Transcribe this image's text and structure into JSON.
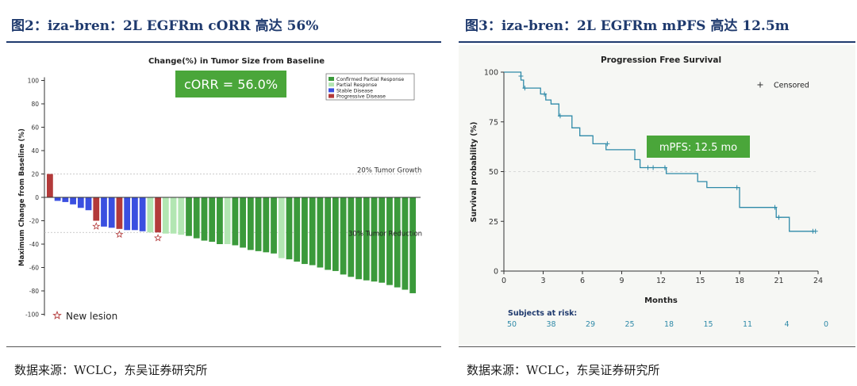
{
  "left": {
    "figure_title": "图2：iza-bren：2L EGFRm cORR 高达 56%",
    "source": "数据来源：WCLC，东吴证券研究所"
  },
  "right": {
    "figure_title": "图3：iza-bren：2L EGFRm mPFS 高达 12.5m",
    "source": "数据来源：WCLC，东吴证券研究所"
  },
  "chart_data": [
    {
      "type": "bar",
      "title": "Change(%) in Tumor Size from Baseline",
      "xlabel": "",
      "ylabel": "Maximum Change from Baseline (%)",
      "ylim": [
        -100,
        100
      ],
      "yticks": [
        100,
        80,
        60,
        40,
        20,
        0,
        -20,
        -40,
        -60,
        -80,
        -100
      ],
      "grid": false,
      "legend_position": "top-right",
      "legend": [
        {
          "label": "Confirmed Partial Response",
          "color": "#3b9a3b"
        },
        {
          "label": "Partial Response",
          "color": "#b2e6b2"
        },
        {
          "label": "Stable Disease",
          "color": "#3a4fe0"
        },
        {
          "label": "Progressive Disease",
          "color": "#b33a3a"
        }
      ],
      "annotations": {
        "corr_box": "cORR = 56.0%",
        "growth_line_label": "20% Tumor Growth",
        "growth_line_value": 20,
        "reduction_line_label": "30% Tumor Reduction",
        "reduction_line_value": -30,
        "new_lesion_label": "New lesion"
      },
      "bars": [
        {
          "value": 20,
          "category": "Progressive Disease",
          "new_lesion": false
        },
        {
          "value": -3,
          "category": "Stable Disease",
          "new_lesion": false
        },
        {
          "value": -4,
          "category": "Stable Disease",
          "new_lesion": false
        },
        {
          "value": -6,
          "category": "Stable Disease",
          "new_lesion": false
        },
        {
          "value": -9,
          "category": "Stable Disease",
          "new_lesion": false
        },
        {
          "value": -11,
          "category": "Stable Disease",
          "new_lesion": false
        },
        {
          "value": -20,
          "category": "Progressive Disease",
          "new_lesion": true
        },
        {
          "value": -25,
          "category": "Stable Disease",
          "new_lesion": false
        },
        {
          "value": -26,
          "category": "Stable Disease",
          "new_lesion": false
        },
        {
          "value": -27,
          "category": "Progressive Disease",
          "new_lesion": true
        },
        {
          "value": -28,
          "category": "Stable Disease",
          "new_lesion": false
        },
        {
          "value": -28,
          "category": "Stable Disease",
          "new_lesion": false
        },
        {
          "value": -29,
          "category": "Stable Disease",
          "new_lesion": false
        },
        {
          "value": -30,
          "category": "Partial Response",
          "new_lesion": false
        },
        {
          "value": -30,
          "category": "Progressive Disease",
          "new_lesion": true
        },
        {
          "value": -31,
          "category": "Partial Response",
          "new_lesion": false
        },
        {
          "value": -31,
          "category": "Partial Response",
          "new_lesion": false
        },
        {
          "value": -32,
          "category": "Partial Response",
          "new_lesion": false
        },
        {
          "value": -33,
          "category": "Confirmed Partial Response",
          "new_lesion": false
        },
        {
          "value": -35,
          "category": "Confirmed Partial Response",
          "new_lesion": false
        },
        {
          "value": -37,
          "category": "Confirmed Partial Response",
          "new_lesion": false
        },
        {
          "value": -38,
          "category": "Confirmed Partial Response",
          "new_lesion": false
        },
        {
          "value": -40,
          "category": "Confirmed Partial Response",
          "new_lesion": false
        },
        {
          "value": -40,
          "category": "Partial Response",
          "new_lesion": false
        },
        {
          "value": -41,
          "category": "Confirmed Partial Response",
          "new_lesion": false
        },
        {
          "value": -43,
          "category": "Confirmed Partial Response",
          "new_lesion": false
        },
        {
          "value": -45,
          "category": "Confirmed Partial Response",
          "new_lesion": false
        },
        {
          "value": -46,
          "category": "Confirmed Partial Response",
          "new_lesion": false
        },
        {
          "value": -47,
          "category": "Confirmed Partial Response",
          "new_lesion": false
        },
        {
          "value": -48,
          "category": "Confirmed Partial Response",
          "new_lesion": false
        },
        {
          "value": -52,
          "category": "Partial Response",
          "new_lesion": false
        },
        {
          "value": -53,
          "category": "Confirmed Partial Response",
          "new_lesion": false
        },
        {
          "value": -55,
          "category": "Confirmed Partial Response",
          "new_lesion": false
        },
        {
          "value": -57,
          "category": "Confirmed Partial Response",
          "new_lesion": false
        },
        {
          "value": -58,
          "category": "Confirmed Partial Response",
          "new_lesion": false
        },
        {
          "value": -60,
          "category": "Confirmed Partial Response",
          "new_lesion": false
        },
        {
          "value": -62,
          "category": "Confirmed Partial Response",
          "new_lesion": false
        },
        {
          "value": -63,
          "category": "Confirmed Partial Response",
          "new_lesion": false
        },
        {
          "value": -66,
          "category": "Confirmed Partial Response",
          "new_lesion": false
        },
        {
          "value": -68,
          "category": "Confirmed Partial Response",
          "new_lesion": false
        },
        {
          "value": -70,
          "category": "Confirmed Partial Response",
          "new_lesion": false
        },
        {
          "value": -71,
          "category": "Confirmed Partial Response",
          "new_lesion": false
        },
        {
          "value": -72,
          "category": "Confirmed Partial Response",
          "new_lesion": false
        },
        {
          "value": -73,
          "category": "Confirmed Partial Response",
          "new_lesion": false
        },
        {
          "value": -75,
          "category": "Confirmed Partial Response",
          "new_lesion": false
        },
        {
          "value": -77,
          "category": "Confirmed Partial Response",
          "new_lesion": false
        },
        {
          "value": -79,
          "category": "Confirmed Partial Response",
          "new_lesion": false
        },
        {
          "value": -82,
          "category": "Confirmed Partial Response",
          "new_lesion": false
        }
      ]
    },
    {
      "type": "line",
      "title": "Progression Free Survival",
      "xlabel": "Months",
      "ylabel": "Survival probability (%)",
      "xlim": [
        0,
        24
      ],
      "ylim": [
        0,
        100
      ],
      "xticks": [
        0,
        3,
        6,
        9,
        12,
        15,
        18,
        21,
        24
      ],
      "yticks": [
        0,
        25,
        50,
        75,
        100
      ],
      "grid": false,
      "legend_position": "top-right",
      "legend": [
        {
          "label": "Censored",
          "marker": "+"
        }
      ],
      "color": "#2f8aa8",
      "reference_line": 50,
      "annotations": {
        "mpfs_box": "mPFS: 12.5 mo"
      },
      "steps": [
        [
          0,
          100
        ],
        [
          1.3,
          100
        ],
        [
          1.3,
          96
        ],
        [
          1.5,
          96
        ],
        [
          1.5,
          92
        ],
        [
          2.8,
          92
        ],
        [
          2.8,
          89
        ],
        [
          3.2,
          89
        ],
        [
          3.2,
          86
        ],
        [
          3.6,
          86
        ],
        [
          3.6,
          84
        ],
        [
          4.2,
          84
        ],
        [
          4.2,
          78
        ],
        [
          5.2,
          78
        ],
        [
          5.2,
          72
        ],
        [
          5.8,
          72
        ],
        [
          5.8,
          68
        ],
        [
          6.8,
          68
        ],
        [
          6.8,
          64
        ],
        [
          7.8,
          64
        ],
        [
          7.8,
          61
        ],
        [
          10.0,
          61
        ],
        [
          10.0,
          56
        ],
        [
          10.4,
          56
        ],
        [
          10.4,
          52
        ],
        [
          12.4,
          52
        ],
        [
          12.4,
          49
        ],
        [
          14.8,
          49
        ],
        [
          14.8,
          45
        ],
        [
          15.5,
          45
        ],
        [
          15.5,
          42
        ],
        [
          18.0,
          42
        ],
        [
          18.0,
          32
        ],
        [
          20.8,
          32
        ],
        [
          20.8,
          27
        ],
        [
          21.8,
          27
        ],
        [
          21.8,
          20
        ],
        [
          23.7,
          20
        ]
      ],
      "censored": [
        [
          1.3,
          98
        ],
        [
          1.6,
          92
        ],
        [
          3.1,
          89
        ],
        [
          4.3,
          78
        ],
        [
          7.9,
          64
        ],
        [
          11.0,
          52
        ],
        [
          11.4,
          52
        ],
        [
          12.3,
          52
        ],
        [
          17.8,
          42
        ],
        [
          20.7,
          32
        ],
        [
          21.0,
          27
        ],
        [
          23.6,
          20
        ],
        [
          23.8,
          20
        ]
      ],
      "risk_table": {
        "label": "Subjects at risk:",
        "times": [
          0,
          3,
          6,
          9,
          12,
          15,
          18,
          21,
          24
        ],
        "counts": [
          "50",
          "38",
          "29",
          "25",
          "18",
          "15",
          "11",
          "4",
          "0"
        ]
      }
    }
  ]
}
